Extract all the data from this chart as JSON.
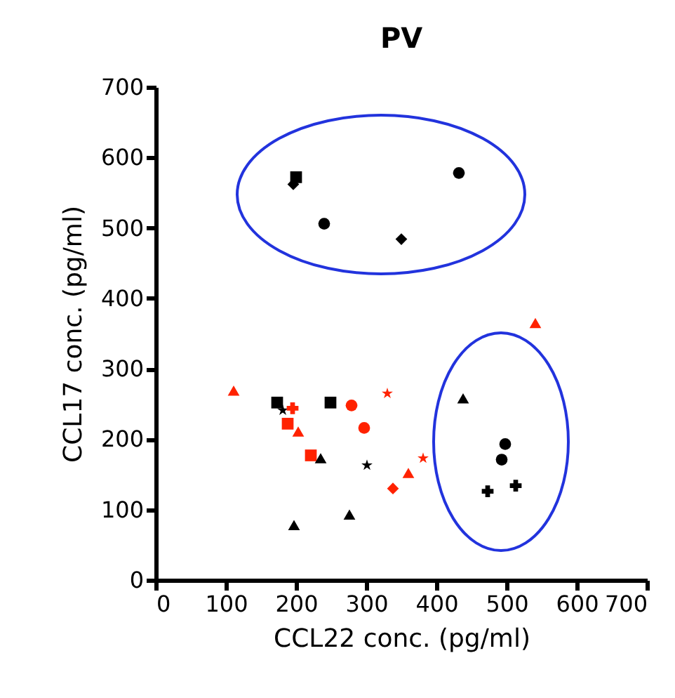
{
  "chart_data": {
    "type": "scatter",
    "title": "PV",
    "xlabel": "CCL22 conc. (pg/ml)",
    "ylabel": "CCL17 conc. (pg/ml)",
    "xlim": [
      0,
      700
    ],
    "xticks": [
      0,
      100,
      200,
      300,
      400,
      500,
      600,
      700
    ],
    "ylim": [
      0,
      700
    ],
    "yticks": [
      0,
      100,
      200,
      300,
      400,
      500,
      600,
      700
    ],
    "grid": false,
    "series": [
      {
        "color": "#000000",
        "marker": "square",
        "x": [
          200
        ],
        "values": [
          572
        ]
      },
      {
        "color": "#000000",
        "marker": "diamond",
        "x": [
          196
        ],
        "values": [
          562
        ]
      },
      {
        "color": "#000000",
        "marker": "circle",
        "x": [
          240
        ],
        "values": [
          506
        ]
      },
      {
        "color": "#000000",
        "marker": "diamond",
        "x": [
          350
        ],
        "values": [
          484
        ]
      },
      {
        "color": "#000000",
        "marker": "circle",
        "x": [
          432
        ],
        "values": [
          578
        ]
      },
      {
        "color": "#ff2200",
        "marker": "triangle",
        "x": [
          111
        ],
        "values": [
          269
        ]
      },
      {
        "color": "#000000",
        "marker": "square",
        "x": [
          173
        ],
        "values": [
          252
        ]
      },
      {
        "color": "#000000",
        "marker": "star",
        "x": [
          181
        ],
        "values": [
          241
        ]
      },
      {
        "color": "#ff2200",
        "marker": "cross",
        "x": [
          195
        ],
        "values": [
          244
        ]
      },
      {
        "color": "#ff2200",
        "marker": "square",
        "x": [
          188
        ],
        "values": [
          222
        ]
      },
      {
        "color": "#ff2200",
        "marker": "triangle",
        "x": [
          203
        ],
        "values": [
          211
        ]
      },
      {
        "color": "#000000",
        "marker": "square",
        "x": [
          249
        ],
        "values": [
          252
        ]
      },
      {
        "color": "#ff2200",
        "marker": "circle",
        "x": [
          279
        ],
        "values": [
          248
        ]
      },
      {
        "color": "#ff2200",
        "marker": "star",
        "x": [
          330
        ],
        "values": [
          265
        ]
      },
      {
        "color": "#ff2200",
        "marker": "circle",
        "x": [
          297
        ],
        "values": [
          216
        ]
      },
      {
        "color": "#ff2200",
        "marker": "square",
        "x": [
          221
        ],
        "values": [
          177
        ]
      },
      {
        "color": "#000000",
        "marker": "triangle",
        "x": [
          235
        ],
        "values": [
          173
        ]
      },
      {
        "color": "#000000",
        "marker": "star",
        "x": [
          301
        ],
        "values": [
          163
        ]
      },
      {
        "color": "#ff2200",
        "marker": "triangle",
        "x": [
          360
        ],
        "values": [
          152
        ]
      },
      {
        "color": "#ff2200",
        "marker": "diamond",
        "x": [
          338
        ],
        "values": [
          130
        ]
      },
      {
        "color": "#ff2200",
        "marker": "star",
        "x": [
          381
        ],
        "values": [
          173
        ]
      },
      {
        "color": "#000000",
        "marker": "triangle",
        "x": [
          197
        ],
        "values": [
          78
        ]
      },
      {
        "color": "#000000",
        "marker": "triangle",
        "x": [
          276
        ],
        "values": [
          93
        ]
      },
      {
        "color": "#ff2200",
        "marker": "triangle",
        "x": [
          541
        ],
        "values": [
          365
        ]
      },
      {
        "color": "#000000",
        "marker": "triangle",
        "x": [
          438
        ],
        "values": [
          258
        ]
      },
      {
        "color": "#000000",
        "marker": "circle",
        "x": [
          498
        ],
        "values": [
          193
        ]
      },
      {
        "color": "#000000",
        "marker": "circle",
        "x": [
          493
        ],
        "values": [
          171
        ]
      },
      {
        "color": "#000000",
        "marker": "cross",
        "x": [
          473
        ],
        "values": [
          126
        ]
      },
      {
        "color": "#000000",
        "marker": "cross",
        "x": [
          513
        ],
        "values": [
          134
        ]
      }
    ]
  }
}
